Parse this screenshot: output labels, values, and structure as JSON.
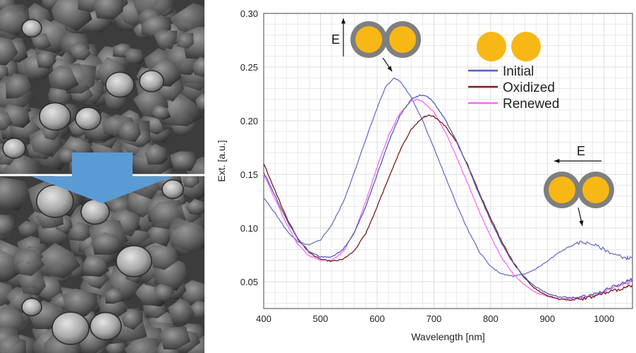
{
  "chart_data": {
    "type": "line",
    "xlabel": "Wavelength [nm]",
    "ylabel": "Ext. [a.u.]",
    "xlim": [
      400,
      1050
    ],
    "ylim": [
      0.025,
      0.3
    ],
    "x_ticks": [
      400,
      500,
      600,
      700,
      800,
      900,
      1000
    ],
    "y_ticks": [
      0.05,
      0.1,
      0.15,
      0.2,
      0.25,
      0.3
    ],
    "grid": true,
    "legend_position": "top-right",
    "series": [
      {
        "name": "Initial",
        "color": "#5060b0",
        "points": [
          [
            400,
            0.152
          ],
          [
            420,
            0.13
          ],
          [
            440,
            0.108
          ],
          [
            460,
            0.09
          ],
          [
            480,
            0.078
          ],
          [
            500,
            0.073
          ],
          [
            520,
            0.073
          ],
          [
            540,
            0.08
          ],
          [
            560,
            0.096
          ],
          [
            580,
            0.12
          ],
          [
            600,
            0.15
          ],
          [
            620,
            0.18
          ],
          [
            640,
            0.205
          ],
          [
            660,
            0.22
          ],
          [
            675,
            0.224
          ],
          [
            690,
            0.222
          ],
          [
            700,
            0.217
          ],
          [
            720,
            0.201
          ],
          [
            740,
            0.181
          ],
          [
            760,
            0.157
          ],
          [
            780,
            0.131
          ],
          [
            800,
            0.107
          ],
          [
            820,
            0.085
          ],
          [
            840,
            0.067
          ],
          [
            860,
            0.054
          ],
          [
            880,
            0.045
          ],
          [
            900,
            0.039
          ],
          [
            920,
            0.036
          ],
          [
            940,
            0.035
          ],
          [
            960,
            0.036
          ],
          [
            980,
            0.038
          ],
          [
            1000,
            0.042
          ],
          [
            1020,
            0.046
          ],
          [
            1040,
            0.05
          ],
          [
            1050,
            0.052
          ]
        ]
      },
      {
        "name": "Oxidized",
        "color": "#7a1a1a",
        "points": [
          [
            400,
            0.16
          ],
          [
            420,
            0.135
          ],
          [
            440,
            0.11
          ],
          [
            460,
            0.09
          ],
          [
            480,
            0.077
          ],
          [
            500,
            0.071
          ],
          [
            520,
            0.069
          ],
          [
            540,
            0.071
          ],
          [
            560,
            0.079
          ],
          [
            580,
            0.095
          ],
          [
            600,
            0.12
          ],
          [
            620,
            0.146
          ],
          [
            640,
            0.172
          ],
          [
            660,
            0.192
          ],
          [
            680,
            0.203
          ],
          [
            690,
            0.205
          ],
          [
            700,
            0.204
          ],
          [
            720,
            0.195
          ],
          [
            740,
            0.18
          ],
          [
            760,
            0.158
          ],
          [
            780,
            0.133
          ],
          [
            800,
            0.109
          ],
          [
            820,
            0.087
          ],
          [
            840,
            0.068
          ],
          [
            860,
            0.053
          ],
          [
            880,
            0.043
          ],
          [
            900,
            0.037
          ],
          [
            920,
            0.034
          ],
          [
            940,
            0.033
          ],
          [
            960,
            0.034
          ],
          [
            980,
            0.036
          ],
          [
            1000,
            0.039
          ],
          [
            1020,
            0.042
          ],
          [
            1040,
            0.045
          ],
          [
            1050,
            0.046
          ]
        ]
      },
      {
        "name": "Renewed",
        "color": "#ff66ff",
        "points": [
          [
            400,
            0.15
          ],
          [
            420,
            0.127
          ],
          [
            440,
            0.104
          ],
          [
            460,
            0.085
          ],
          [
            480,
            0.074
          ],
          [
            500,
            0.07
          ],
          [
            520,
            0.07
          ],
          [
            540,
            0.078
          ],
          [
            560,
            0.096
          ],
          [
            580,
            0.125
          ],
          [
            600,
            0.157
          ],
          [
            620,
            0.186
          ],
          [
            640,
            0.207
          ],
          [
            660,
            0.218
          ],
          [
            670,
            0.22
          ],
          [
            680,
            0.218
          ],
          [
            700,
            0.208
          ],
          [
            720,
            0.19
          ],
          [
            740,
            0.166
          ],
          [
            760,
            0.141
          ],
          [
            780,
            0.115
          ],
          [
            800,
            0.092
          ],
          [
            820,
            0.072
          ],
          [
            840,
            0.057
          ],
          [
            860,
            0.047
          ],
          [
            880,
            0.04
          ],
          [
            900,
            0.036
          ],
          [
            920,
            0.034
          ],
          [
            940,
            0.034
          ],
          [
            960,
            0.035
          ],
          [
            980,
            0.037
          ],
          [
            1000,
            0.041
          ],
          [
            1020,
            0.045
          ],
          [
            1040,
            0.049
          ],
          [
            1050,
            0.05
          ]
        ]
      },
      {
        "name": "",
        "color": "#6a70c8",
        "points": [
          [
            400,
            0.128
          ],
          [
            420,
            0.114
          ],
          [
            440,
            0.098
          ],
          [
            460,
            0.087
          ],
          [
            480,
            0.084
          ],
          [
            500,
            0.089
          ],
          [
            520,
            0.103
          ],
          [
            540,
            0.124
          ],
          [
            560,
            0.152
          ],
          [
            580,
            0.183
          ],
          [
            600,
            0.212
          ],
          [
            615,
            0.232
          ],
          [
            630,
            0.24
          ],
          [
            640,
            0.237
          ],
          [
            660,
            0.222
          ],
          [
            680,
            0.2
          ],
          [
            700,
            0.175
          ],
          [
            720,
            0.148
          ],
          [
            740,
            0.122
          ],
          [
            760,
            0.098
          ],
          [
            780,
            0.078
          ],
          [
            800,
            0.064
          ],
          [
            820,
            0.057
          ],
          [
            840,
            0.055
          ],
          [
            860,
            0.057
          ],
          [
            880,
            0.062
          ],
          [
            900,
            0.069
          ],
          [
            920,
            0.077
          ],
          [
            940,
            0.083
          ],
          [
            960,
            0.087
          ],
          [
            980,
            0.085
          ],
          [
            1000,
            0.08
          ],
          [
            1020,
            0.075
          ],
          [
            1040,
            0.072
          ],
          [
            1050,
            0.072
          ]
        ]
      }
    ],
    "annotations": {
      "e_label": "E"
    }
  },
  "colors": {
    "gold": "#f7b815",
    "shell": "#7f7f7f",
    "arrow": "#5b9bd5",
    "grid": "#dcdcdc"
  },
  "sem_panel": {
    "icon": "sem-micrograph-pair",
    "arrow_icon": "down-arrow-icon"
  }
}
